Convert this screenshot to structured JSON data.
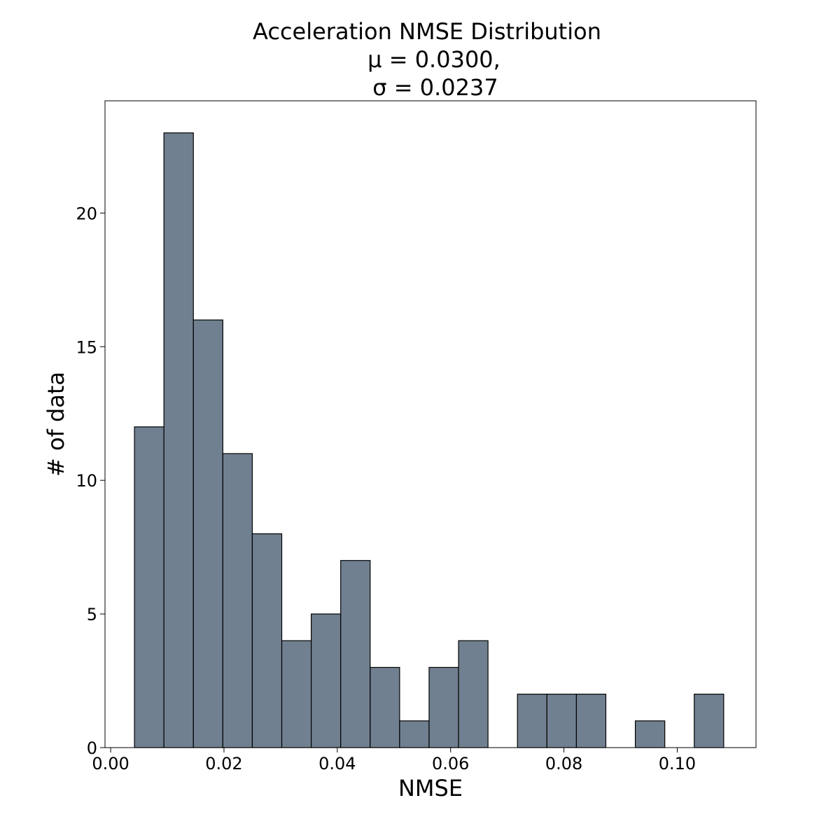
{
  "chart_data": {
    "type": "bar",
    "title_lines": [
      "Acceleration NMSE Distribution",
      "μ = 0.0300,",
      "σ = 0.0237"
    ],
    "xlabel": "NMSE",
    "ylabel": "# of data",
    "xlim": [
      -0.001,
      0.1139
    ],
    "ylim": [
      0,
      24.2
    ],
    "xticks": [
      0.0,
      0.02,
      0.04,
      0.06,
      0.08,
      0.1
    ],
    "xtick_labels": [
      "0.00",
      "0.02",
      "0.04",
      "0.06",
      "0.08",
      "0.10"
    ],
    "yticks": [
      0,
      5,
      10,
      15,
      20
    ],
    "ytick_labels": [
      "0",
      "5",
      "10",
      "15",
      "20"
    ],
    "bin_edges": [
      0.0042,
      0.0094,
      0.0146,
      0.0198,
      0.025,
      0.0302,
      0.0354,
      0.0406,
      0.0458,
      0.051,
      0.0562,
      0.0614,
      0.0666,
      0.0718,
      0.077,
      0.0822,
      0.0874,
      0.0926,
      0.0978,
      0.103,
      0.1082
    ],
    "counts": [
      12,
      23,
      16,
      11,
      8,
      4,
      5,
      7,
      3,
      1,
      3,
      4,
      0,
      2,
      2,
      2,
      0,
      1,
      0,
      2
    ],
    "bar_color": "#708090",
    "edge_color": "#000000",
    "grid": false
  }
}
